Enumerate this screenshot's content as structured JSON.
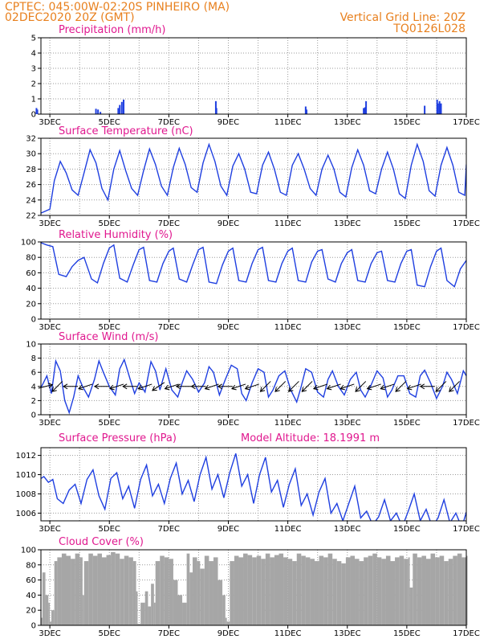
{
  "header": {
    "line1": "CPTEC:   045:00W-02:20S   PINHEIRO (MA)",
    "line2": "02DEC2020 20Z (GMT)",
    "grid_note": "Vertical Grid Line: 20Z",
    "run_id": "TQ0126L028"
  },
  "colors": {
    "header": "#e8801e",
    "title": "#e0188f",
    "series": "#1f3fe0",
    "cloud": "#a6a6a6",
    "grid": "#9a9a9a"
  },
  "model_altitude": "Model Altitude: 18.1991 m",
  "chart_data": [
    {
      "type": "bar",
      "title": "Precipitation (mm/h)",
      "x_tick_labels": [
        "3DEC",
        "5DEC",
        "7DEC",
        "9DEC",
        "11DEC",
        "13DEC",
        "15DEC",
        "17DEC"
      ],
      "xlim_days": [
        2.7,
        17.0
      ],
      "ylim": [
        0,
        5
      ],
      "yticks": [
        0,
        1,
        2,
        3,
        4,
        5
      ],
      "grid": true,
      "x": [
        2.55,
        2.58,
        4.55,
        4.62,
        4.7,
        5.3,
        5.35,
        5.42,
        5.48,
        8.58,
        8.6,
        11.6,
        11.63,
        13.55,
        13.6,
        13.63,
        15.6,
        16.02,
        16.05,
        16.1,
        16.15
      ],
      "values": [
        0.4,
        0.3,
        0.35,
        0.3,
        0.15,
        0.4,
        0.6,
        0.8,
        0.95,
        0.85,
        0.4,
        0.5,
        0.3,
        0.4,
        0.45,
        0.85,
        0.55,
        0.95,
        0.7,
        0.85,
        0.7
      ]
    },
    {
      "type": "line",
      "title": "Surface Temperature (nC)",
      "x_tick_labels": [
        "3DEC",
        "5DEC",
        "7DEC",
        "9DEC",
        "11DEC",
        "13DEC",
        "15DEC",
        "17DEC"
      ],
      "ylim": [
        22,
        32
      ],
      "yticks": [
        22,
        24,
        26,
        28,
        30,
        32
      ],
      "grid": true,
      "x": [
        2.7,
        3.0,
        3.15,
        3.35,
        3.55,
        3.75,
        3.95,
        4.15,
        4.35,
        4.55,
        4.75,
        4.95,
        5.15,
        5.35,
        5.55,
        5.75,
        5.95,
        6.15,
        6.35,
        6.55,
        6.75,
        6.95,
        7.15,
        7.35,
        7.55,
        7.75,
        7.95,
        8.15,
        8.35,
        8.55,
        8.75,
        8.95,
        9.15,
        9.35,
        9.55,
        9.75,
        9.95,
        10.15,
        10.35,
        10.55,
        10.75,
        10.95,
        11.15,
        11.35,
        11.55,
        11.75,
        11.95,
        12.15,
        12.35,
        12.55,
        12.75,
        12.95,
        13.15,
        13.35,
        13.55,
        13.75,
        13.95,
        14.15,
        14.35,
        14.55,
        14.75,
        14.95,
        15.15,
        15.35,
        15.55,
        15.75,
        15.95,
        16.15,
        16.35,
        16.55,
        16.75,
        16.95,
        17.0
      ],
      "values": [
        22.3,
        22.8,
        26.5,
        29.0,
        27.5,
        25.3,
        24.6,
        27.5,
        30.5,
        28.8,
        25.5,
        24.0,
        28.0,
        30.4,
        27.8,
        25.5,
        24.6,
        27.8,
        30.6,
        28.6,
        25.8,
        24.6,
        28.2,
        30.7,
        28.6,
        25.6,
        25.0,
        28.8,
        31.2,
        29.0,
        25.8,
        24.6,
        28.4,
        30.0,
        28.0,
        25.0,
        24.8,
        28.5,
        30.2,
        28.0,
        25.0,
        24.6,
        28.5,
        30.0,
        28.0,
        25.5,
        24.6,
        28.0,
        29.8,
        28.0,
        25.0,
        24.4,
        28.2,
        30.5,
        28.5,
        25.2,
        24.8,
        28.0,
        30.2,
        28.0,
        24.8,
        24.2,
        28.5,
        31.2,
        29.0,
        25.2,
        24.5,
        28.5,
        30.8,
        28.5,
        25.0,
        24.6,
        28.6
      ]
    },
    {
      "type": "line",
      "title": "Relative Humidity (%)",
      "x_tick_labels": [
        "3DEC",
        "5DEC",
        "7DEC",
        "9DEC",
        "11DEC",
        "13DEC",
        "15DEC",
        "17DEC"
      ],
      "ylim": [
        0,
        100
      ],
      "yticks": [
        0,
        20,
        40,
        60,
        80,
        100
      ],
      "grid": true,
      "x": [
        2.7,
        2.9,
        3.1,
        3.3,
        3.55,
        3.75,
        3.95,
        4.15,
        4.4,
        4.6,
        4.8,
        5.0,
        5.15,
        5.35,
        5.6,
        5.8,
        6.0,
        6.15,
        6.35,
        6.6,
        6.8,
        7.0,
        7.15,
        7.35,
        7.6,
        7.8,
        8.0,
        8.15,
        8.35,
        8.6,
        8.8,
        9.0,
        9.15,
        9.35,
        9.6,
        9.8,
        10.0,
        10.15,
        10.35,
        10.6,
        10.8,
        11.0,
        11.15,
        11.35,
        11.6,
        11.8,
        12.0,
        12.15,
        12.35,
        12.6,
        12.8,
        13.0,
        13.15,
        13.35,
        13.6,
        13.8,
        14.0,
        14.15,
        14.35,
        14.6,
        14.8,
        15.0,
        15.15,
        15.35,
        15.6,
        15.8,
        16.0,
        16.15,
        16.35,
        16.6,
        16.8,
        17.0
      ],
      "values": [
        99,
        96,
        94,
        58,
        55,
        68,
        76,
        80,
        52,
        47,
        72,
        92,
        96,
        53,
        48,
        70,
        90,
        93,
        50,
        48,
        72,
        88,
        92,
        52,
        48,
        70,
        90,
        93,
        48,
        46,
        70,
        88,
        92,
        50,
        48,
        72,
        90,
        93,
        50,
        48,
        72,
        88,
        92,
        50,
        48,
        74,
        88,
        90,
        52,
        48,
        72,
        86,
        90,
        50,
        48,
        72,
        86,
        88,
        50,
        48,
        72,
        88,
        90,
        44,
        42,
        68,
        88,
        92,
        50,
        42,
        65,
        76
      ]
    },
    {
      "type": "line",
      "title": "Surface Wind (m/s)",
      "x_tick_labels": [
        "3DEC",
        "5DEC",
        "7DEC",
        "9DEC",
        "11DEC",
        "13DEC",
        "15DEC",
        "17DEC"
      ],
      "ylim": [
        0,
        10
      ],
      "yticks": [
        0,
        2,
        4,
        6,
        8,
        10
      ],
      "grid": true,
      "x": [
        2.7,
        2.9,
        3.05,
        3.2,
        3.35,
        3.5,
        3.65,
        3.8,
        3.95,
        4.1,
        4.3,
        4.5,
        4.65,
        4.8,
        5.0,
        5.2,
        5.35,
        5.5,
        5.7,
        5.85,
        6.0,
        6.2,
        6.4,
        6.55,
        6.7,
        6.9,
        7.1,
        7.3,
        7.45,
        7.6,
        7.8,
        8.0,
        8.2,
        8.35,
        8.5,
        8.7,
        8.9,
        9.1,
        9.3,
        9.45,
        9.6,
        9.8,
        10.0,
        10.2,
        10.35,
        10.5,
        10.7,
        10.9,
        11.1,
        11.3,
        11.45,
        11.6,
        11.8,
        12.0,
        12.2,
        12.35,
        12.5,
        12.7,
        12.9,
        13.1,
        13.3,
        13.45,
        13.6,
        13.8,
        14.0,
        14.2,
        14.35,
        14.5,
        14.7,
        14.9,
        15.1,
        15.3,
        15.45,
        15.6,
        15.8,
        16.0,
        16.2,
        16.35,
        16.5,
        16.7,
        16.9,
        17.0
      ],
      "values": [
        3.8,
        5.5,
        3.0,
        7.6,
        6.2,
        2.0,
        0.3,
        2.5,
        5.5,
        4.0,
        2.5,
        5.0,
        7.6,
        6.0,
        4.0,
        2.8,
        6.5,
        7.8,
        5.0,
        3.0,
        4.5,
        3.2,
        7.5,
        6.2,
        3.5,
        6.5,
        3.5,
        2.5,
        4.5,
        6.2,
        5.0,
        3.2,
        4.5,
        6.8,
        6.0,
        2.8,
        5.0,
        7.0,
        6.5,
        3.0,
        2.0,
        4.5,
        6.5,
        6.0,
        2.5,
        3.5,
        5.5,
        6.2,
        3.5,
        1.8,
        4.0,
        6.5,
        6.0,
        3.2,
        2.5,
        5.0,
        6.2,
        4.0,
        2.8,
        5.0,
        6.0,
        3.5,
        2.5,
        4.2,
        6.2,
        5.2,
        2.5,
        3.5,
        5.5,
        5.5,
        3.0,
        2.5,
        5.5,
        6.3,
        4.5,
        2.3,
        4.0,
        6.0,
        5.0,
        3.0,
        6.2,
        5.5
      ],
      "vectors": [
        {
          "x": 2.85,
          "dx": 4,
          "dy": 1
        },
        {
          "x": 3.25,
          "dx": -2,
          "dy": -2
        },
        {
          "x": 3.7,
          "dx": -3,
          "dy": 0
        },
        {
          "x": 4.2,
          "dx": -3,
          "dy": -1
        },
        {
          "x": 4.75,
          "dx": -4,
          "dy": 0
        },
        {
          "x": 5.25,
          "dx": -3,
          "dy": -1
        },
        {
          "x": 5.7,
          "dx": -4,
          "dy": 0
        },
        {
          "x": 6.2,
          "dx": -3,
          "dy": -1
        },
        {
          "x": 6.65,
          "dx": -3,
          "dy": -2
        },
        {
          "x": 7.1,
          "dx": -3,
          "dy": -1
        },
        {
          "x": 7.5,
          "dx": -4,
          "dy": 0
        },
        {
          "x": 8.0,
          "dx": -4,
          "dy": 0
        },
        {
          "x": 8.45,
          "dx": -3,
          "dy": -1
        },
        {
          "x": 8.9,
          "dx": -4,
          "dy": 0
        },
        {
          "x": 9.35,
          "dx": -3,
          "dy": -1
        },
        {
          "x": 9.8,
          "dx": -3,
          "dy": -1
        },
        {
          "x": 10.25,
          "dx": -2,
          "dy": -2
        },
        {
          "x": 10.75,
          "dx": -2,
          "dy": -2
        },
        {
          "x": 11.2,
          "dx": -2,
          "dy": -2
        },
        {
          "x": 11.65,
          "dx": -2,
          "dy": -2
        },
        {
          "x": 12.1,
          "dx": -3,
          "dy": -1
        },
        {
          "x": 12.55,
          "dx": -3,
          "dy": -1
        },
        {
          "x": 13.0,
          "dx": -3,
          "dy": -1
        },
        {
          "x": 13.45,
          "dx": -2,
          "dy": -2
        },
        {
          "x": 13.9,
          "dx": -3,
          "dy": -1
        },
        {
          "x": 14.35,
          "dx": -3,
          "dy": -1
        },
        {
          "x": 14.8,
          "dx": -2,
          "dy": -2
        },
        {
          "x": 15.25,
          "dx": -3,
          "dy": -1
        },
        {
          "x": 15.7,
          "dx": -4,
          "dy": 0
        },
        {
          "x": 16.15,
          "dx": -2,
          "dy": -2
        },
        {
          "x": 16.6,
          "dx": -2,
          "dy": -2
        }
      ]
    },
    {
      "type": "line",
      "title": "Surface Pressure (hPa)",
      "x_tick_labels": [
        "3DEC",
        "5DEC",
        "7DEC",
        "9DEC",
        "11DEC",
        "13DEC",
        "15DEC",
        "17DEC"
      ],
      "ylim": [
        1005.2,
        1012.8
      ],
      "yticks": [
        1006,
        1008,
        1010,
        1012
      ],
      "grid": true,
      "x": [
        2.7,
        2.8,
        2.95,
        3.1,
        3.25,
        3.45,
        3.65,
        3.85,
        4.05,
        4.25,
        4.45,
        4.65,
        4.85,
        5.05,
        5.25,
        5.45,
        5.65,
        5.85,
        6.05,
        6.25,
        6.45,
        6.65,
        6.85,
        7.05,
        7.25,
        7.45,
        7.65,
        7.85,
        8.05,
        8.25,
        8.45,
        8.65,
        8.85,
        9.05,
        9.25,
        9.45,
        9.65,
        9.85,
        10.05,
        10.25,
        10.45,
        10.65,
        10.85,
        11.05,
        11.25,
        11.45,
        11.65,
        11.85,
        12.05,
        12.25,
        12.45,
        12.65,
        12.85,
        13.05,
        13.25,
        13.45,
        13.65,
        13.85,
        14.05,
        14.25,
        14.45,
        14.65,
        14.85,
        15.05,
        15.25,
        15.45,
        15.65,
        15.85,
        16.05,
        16.25,
        16.45,
        16.65,
        16.85,
        17.0
      ],
      "values": [
        1009.6,
        1009.8,
        1009.2,
        1009.5,
        1007.5,
        1007.0,
        1008.4,
        1009.0,
        1007.0,
        1009.5,
        1010.5,
        1007.8,
        1006.4,
        1009.6,
        1010.2,
        1007.5,
        1008.8,
        1006.5,
        1009.5,
        1011.0,
        1007.8,
        1009.0,
        1007.0,
        1009.6,
        1011.2,
        1008.0,
        1009.4,
        1007.2,
        1010.0,
        1011.8,
        1008.5,
        1010.0,
        1007.6,
        1010.2,
        1012.2,
        1008.8,
        1010.0,
        1007.0,
        1010.0,
        1011.8,
        1008.2,
        1009.4,
        1006.6,
        1009.0,
        1010.6,
        1006.8,
        1008.0,
        1005.8,
        1008.2,
        1009.6,
        1006.0,
        1007.0,
        1005.2,
        1007.0,
        1008.8,
        1005.5,
        1006.2,
        1004.8,
        1005.6,
        1007.4,
        1005.2,
        1006.0,
        1004.6,
        1006.2,
        1008.0,
        1005.2,
        1006.4,
        1004.6,
        1005.5,
        1007.4,
        1005.0,
        1006.0,
        1004.5,
        1006.1
      ]
    },
    {
      "type": "area",
      "title": "Cloud Cover (%)",
      "x_tick_labels": [
        "3DEC",
        "5DEC",
        "7DEC",
        "9DEC",
        "11DEC",
        "13DEC",
        "15DEC",
        "17DEC"
      ],
      "ylim": [
        0,
        100
      ],
      "yticks": [
        0,
        20,
        40,
        60,
        80,
        100
      ],
      "grid": true,
      "x": [
        2.7,
        2.75,
        2.85,
        2.95,
        3.0,
        3.05,
        3.15,
        3.25,
        3.4,
        3.55,
        3.7,
        3.85,
        4.0,
        4.1,
        4.15,
        4.3,
        4.45,
        4.6,
        4.75,
        4.9,
        5.05,
        5.2,
        5.35,
        5.5,
        5.65,
        5.8,
        5.9,
        5.95,
        6.05,
        6.2,
        6.3,
        6.4,
        6.5,
        6.55,
        6.7,
        6.85,
        7.0,
        7.15,
        7.3,
        7.45,
        7.6,
        7.7,
        7.8,
        7.95,
        8.05,
        8.2,
        8.35,
        8.5,
        8.65,
        8.8,
        8.9,
        8.95,
        9.05,
        9.2,
        9.35,
        9.5,
        9.65,
        9.8,
        9.95,
        10.1,
        10.25,
        10.4,
        10.55,
        10.7,
        10.85,
        11.0,
        11.15,
        11.3,
        11.45,
        11.6,
        11.75,
        11.9,
        12.05,
        12.2,
        12.35,
        12.5,
        12.65,
        12.8,
        12.95,
        13.1,
        13.25,
        13.4,
        13.55,
        13.7,
        13.85,
        14.0,
        14.15,
        14.3,
        14.45,
        14.6,
        14.75,
        14.9,
        15.05,
        15.1,
        15.2,
        15.35,
        15.5,
        15.65,
        15.8,
        15.95,
        16.1,
        16.25,
        16.4,
        16.55,
        16.7,
        16.85,
        17.0
      ],
      "values": [
        10,
        70,
        40,
        30,
        5,
        20,
        85,
        90,
        95,
        92,
        88,
        95,
        90,
        40,
        85,
        95,
        92,
        95,
        90,
        93,
        97,
        95,
        88,
        92,
        90,
        85,
        45,
        2,
        30,
        45,
        25,
        55,
        30,
        85,
        92,
        90,
        88,
        60,
        40,
        30,
        95,
        70,
        90,
        85,
        75,
        92,
        85,
        90,
        60,
        40,
        10,
        5,
        85,
        92,
        90,
        95,
        93,
        90,
        92,
        88,
        95,
        90,
        93,
        95,
        90,
        88,
        85,
        95,
        92,
        90,
        88,
        85,
        92,
        90,
        95,
        88,
        85,
        82,
        90,
        92,
        88,
        85,
        90,
        92,
        95,
        90,
        88,
        92,
        85,
        90,
        92,
        88,
        90,
        50,
        95,
        90,
        92,
        88,
        95,
        90,
        92,
        85,
        88,
        92,
        95,
        90,
        92
      ]
    }
  ]
}
